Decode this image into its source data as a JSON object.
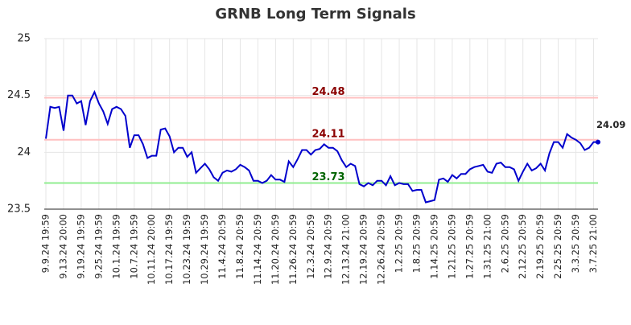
{
  "chart_data": {
    "type": "line",
    "title": "GRNB Long Term Signals",
    "categories": [
      "9.9.24 19:59",
      null,
      null,
      null,
      "9.13.24 20:00",
      null,
      null,
      null,
      "9.19.24 19:59",
      null,
      null,
      null,
      "9.25.24 19:59",
      null,
      null,
      null,
      "10.1.24 19:59",
      null,
      null,
      null,
      "10.7.24 19:59",
      null,
      null,
      null,
      "10.11.24 20:00",
      null,
      null,
      null,
      "10.17.24 19:59",
      null,
      null,
      null,
      "10.23.24 19:59",
      null,
      null,
      null,
      "10.29.24 19:59",
      null,
      null,
      null,
      "11.4.24 20:59",
      null,
      null,
      null,
      "11.8.24 20:59",
      null,
      null,
      null,
      "11.14.24 20:59",
      null,
      null,
      null,
      "11.20.24 20:59",
      null,
      null,
      null,
      "11.26.24 20:59",
      null,
      null,
      null,
      "12.3.24 20:59",
      null,
      null,
      null,
      "12.9.24 20:59",
      null,
      null,
      null,
      "12.13.24 21:00",
      null,
      null,
      null,
      "12.19.24 20:59",
      null,
      null,
      null,
      "12.26.24 20:59",
      null,
      null,
      null,
      "1.2.25 20:59",
      null,
      null,
      null,
      "1.8.25 20:59",
      null,
      null,
      null,
      "1.14.25 20:59",
      null,
      null,
      null,
      "1.21.25 20:59",
      null,
      null,
      null,
      "1.27.25 20:59",
      null,
      null,
      null,
      "1.31.25 21:00",
      null,
      null,
      null,
      "2.6.25 20:59",
      null,
      null,
      null,
      "2.12.25 20:59",
      null,
      null,
      null,
      "2.19.25 20:59",
      null,
      null,
      null,
      "2.25.25 20:59",
      null,
      null,
      null,
      "3.3.25 20:59",
      null,
      null,
      null,
      "3.7.25 21:00",
      null
    ],
    "series": [
      {
        "color": "#0000cc",
        "values": [
          24.12,
          24.4,
          24.39,
          24.4,
          24.19,
          24.5,
          24.5,
          24.43,
          24.45,
          24.24,
          24.45,
          24.53,
          24.43,
          24.36,
          24.25,
          24.38,
          24.4,
          24.38,
          24.32,
          24.04,
          24.15,
          24.15,
          24.07,
          23.95,
          23.97,
          23.97,
          24.2,
          24.21,
          24.14,
          24.0,
          24.04,
          24.04,
          23.96,
          24.0,
          23.82,
          23.86,
          23.9,
          23.85,
          23.78,
          23.75,
          23.82,
          23.84,
          23.83,
          23.85,
          23.89,
          23.87,
          23.84,
          23.75,
          23.75,
          23.73,
          23.75,
          23.8,
          23.76,
          23.76,
          23.74,
          23.92,
          23.87,
          23.94,
          24.02,
          24.02,
          23.98,
          24.02,
          24.03,
          24.07,
          24.04,
          24.04,
          24.01,
          23.93,
          23.87,
          23.9,
          23.88,
          23.72,
          23.7,
          23.73,
          23.71,
          23.75,
          23.75,
          23.71,
          23.79,
          23.71,
          23.73,
          23.72,
          23.72,
          23.66,
          23.67,
          23.67,
          23.56,
          23.57,
          23.58,
          23.76,
          23.77,
          23.74,
          23.8,
          23.77,
          23.81,
          23.81,
          23.85,
          23.87,
          23.88,
          23.89,
          23.83,
          23.82,
          23.9,
          23.91,
          23.87,
          23.87,
          23.85,
          23.75,
          23.83,
          23.9,
          23.84,
          23.86,
          23.9,
          23.84,
          23.99,
          24.09,
          24.09,
          24.04,
          24.16,
          24.13,
          24.11,
          24.08,
          24.02,
          24.04,
          24.09,
          24.09
        ]
      }
    ],
    "hlines": [
      {
        "value": 24.48,
        "color": "#ffc0c0",
        "label_color": "#8b0000"
      },
      {
        "value": 24.11,
        "color": "#ffc0c0",
        "label_color": "#8b0000"
      },
      {
        "value": 23.73,
        "color": "#90ee90",
        "label_color": "#006400"
      }
    ],
    "ylim": [
      23.5,
      25
    ],
    "yticks": [
      23.5,
      24,
      24.5,
      25
    ],
    "grid": true
  }
}
